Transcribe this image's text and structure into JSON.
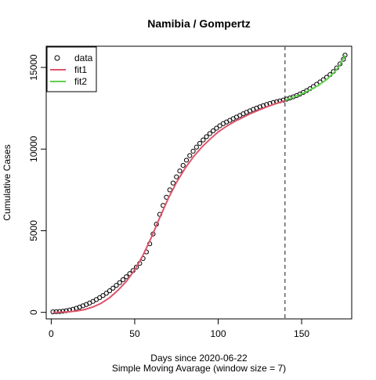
{
  "chart_data": {
    "type": "scatter",
    "title": "Namibia / Gompertz",
    "xlabel": "Days since 2020-06-22",
    "xlabel2": "Simple Moving Avarage (window size = 7)",
    "ylabel": "Cumulative Cases",
    "xlim": [
      -3,
      180
    ],
    "ylim": [
      -400,
      16300
    ],
    "xticks": [
      0,
      50,
      100,
      150
    ],
    "yticks": [
      0,
      5000,
      10000,
      15000
    ],
    "grid": false,
    "legend_position": "top-left",
    "vline_x": 140,
    "colors": {
      "data": "#000000",
      "fit1": "#DF536B",
      "fit2": "#61D04F",
      "vline": "#666666"
    },
    "series": [
      {
        "name": "data",
        "kind": "points",
        "x": [
          1,
          3,
          5,
          7,
          9,
          11,
          13,
          15,
          17,
          19,
          21,
          23,
          25,
          27,
          29,
          31,
          33,
          35,
          37,
          39,
          41,
          43,
          45,
          47,
          49,
          51,
          53,
          55,
          57,
          59,
          61,
          63,
          65,
          67,
          69,
          71,
          73,
          75,
          77,
          79,
          81,
          83,
          85,
          87,
          89,
          91,
          93,
          95,
          97,
          99,
          101,
          103,
          105,
          107,
          109,
          111,
          113,
          115,
          117,
          119,
          121,
          123,
          125,
          127,
          129,
          131,
          133,
          135,
          137,
          139,
          141,
          143,
          145,
          147,
          149,
          151,
          153,
          155,
          157,
          159,
          161,
          163,
          165,
          167,
          169,
          171,
          173,
          175,
          176
        ],
        "y": [
          30,
          40,
          50,
          70,
          100,
          140,
          190,
          250,
          320,
          400,
          480,
          570,
          670,
          780,
          900,
          1030,
          1170,
          1320,
          1480,
          1650,
          1820,
          2000,
          2180,
          2370,
          2560,
          2770,
          3000,
          3300,
          3700,
          4200,
          4800,
          5400,
          6000,
          6550,
          7050,
          7500,
          7920,
          8300,
          8660,
          9000,
          9320,
          9600,
          9870,
          10120,
          10350,
          10560,
          10760,
          10950,
          11120,
          11280,
          11430,
          11560,
          11660,
          11760,
          11860,
          11960,
          12060,
          12160,
          12250,
          12340,
          12430,
          12510,
          12590,
          12660,
          12730,
          12790,
          12850,
          12900,
          12950,
          13000,
          13060,
          13130,
          13200,
          13280,
          13370,
          13470,
          13580,
          13700,
          13830,
          13970,
          14110,
          14250,
          14400,
          14560,
          14750,
          14970,
          15220,
          15500,
          15750
        ]
      },
      {
        "name": "fit1",
        "kind": "line",
        "x": [
          1,
          5,
          10,
          15,
          20,
          25,
          30,
          35,
          40,
          45,
          50,
          55,
          60,
          65,
          70,
          75,
          80,
          85,
          90,
          95,
          100,
          105,
          110,
          115,
          120,
          125,
          130,
          135,
          140
        ],
        "y": [
          5,
          10,
          30,
          80,
          170,
          330,
          560,
          900,
          1350,
          1900,
          2600,
          3500,
          4600,
          5800,
          6950,
          7950,
          8800,
          9500,
          10100,
          10600,
          11050,
          11400,
          11700,
          11950,
          12200,
          12420,
          12620,
          12800,
          12960
        ]
      },
      {
        "name": "fit2",
        "kind": "line",
        "x": [
          140,
          145,
          150,
          155,
          160,
          165,
          170,
          173,
          176
        ],
        "y": [
          13000,
          13180,
          13380,
          13620,
          13900,
          14260,
          14750,
          15150,
          15750
        ]
      }
    ]
  }
}
